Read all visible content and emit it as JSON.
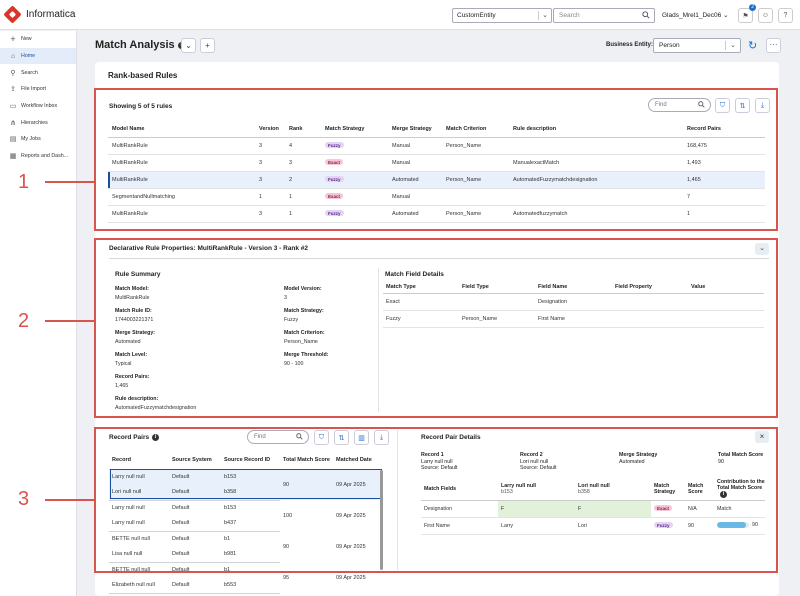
{
  "app": {
    "name": "Informatica"
  },
  "topbar": {
    "entity": "CustomEntity",
    "search_placeholder": "Search",
    "user": "Glads_Mrel1_Dec06",
    "notifications": "2"
  },
  "sidebar": {
    "items": [
      {
        "label": "New",
        "icon": "plus-icon"
      },
      {
        "label": "Home",
        "icon": "home-icon"
      },
      {
        "label": "Search",
        "icon": "search-icon"
      },
      {
        "label": "File Import",
        "icon": "file-import-icon"
      },
      {
        "label": "Workflow Inbox",
        "icon": "inbox-icon"
      },
      {
        "label": "Hierarchies",
        "icon": "hierarchy-icon"
      },
      {
        "label": "My Jobs",
        "icon": "jobs-icon"
      },
      {
        "label": "Reports and Dash...",
        "icon": "reports-icon"
      }
    ]
  },
  "header": {
    "title": "Match Analysis",
    "business_entity_label": "Business Entity:",
    "business_entity": "Person"
  },
  "section_title": "Rank-based Rules",
  "rules": {
    "showing": "Showing 5 of 5 rules",
    "find_placeholder": "Find",
    "columns": [
      "Model Name",
      "Version",
      "Rank",
      "Match Strategy",
      "Merge Strategy",
      "Match Criterion",
      "Rule description",
      "Record Pairs"
    ],
    "rows": [
      {
        "model": "MultiRankRule",
        "version": "3",
        "rank": "4",
        "strategy": "Fuzzy",
        "merge": "Manual",
        "criterion": "Person_Name",
        "description": "",
        "pairs": "168,475"
      },
      {
        "model": "MultiRankRule",
        "version": "3",
        "rank": "3",
        "strategy": "Exact",
        "merge": "Manual",
        "criterion": "",
        "description": "ManualexactMatch",
        "pairs": "1,493"
      },
      {
        "model": "MultiRankRule",
        "version": "3",
        "rank": "2",
        "strategy": "Fuzzy",
        "merge": "Automated",
        "criterion": "Person_Name",
        "description": "AutomatedFuzzymatchdesignation",
        "pairs": "1,465"
      },
      {
        "model": "SegmentandNullmatching",
        "version": "1",
        "rank": "1",
        "strategy": "Exact",
        "merge": "Manual",
        "criterion": "",
        "description": "",
        "pairs": "7"
      },
      {
        "model": "MultiRankRule",
        "version": "3",
        "rank": "1",
        "strategy": "Fuzzy",
        "merge": "Automated",
        "criterion": "Person_Name",
        "description": "Automatedfuzzymatch",
        "pairs": "1"
      }
    ]
  },
  "declarative": {
    "title": "Declarative Rule Properties: MultiRankRule - Version 3 - Rank #2",
    "summary_title": "Rule Summary",
    "left": [
      {
        "k": "Match Model:",
        "v": "MultiRankRule"
      },
      {
        "k": "Match Rule ID:",
        "v": "1744003221371"
      },
      {
        "k": "Merge Strategy:",
        "v": "Automated"
      },
      {
        "k": "Match Level:",
        "v": "Typical"
      },
      {
        "k": "Record Pairs:",
        "v": "1,465"
      },
      {
        "k": "Rule description:",
        "v": "AutomatedFuzzymatchdesignation"
      }
    ],
    "right": [
      {
        "k": "Model Version:",
        "v": "3"
      },
      {
        "k": "Match Strategy:",
        "v": "Fuzzy"
      },
      {
        "k": "Match Criterion:",
        "v": "Person_Name"
      },
      {
        "k": "Merge Threshold:",
        "v": "90 - 100"
      }
    ],
    "field_title": "Match Field Details",
    "field_columns": [
      "Match Type",
      "Field Type",
      "Field Name",
      "Field Property",
      "Value"
    ],
    "field_rows": [
      {
        "type": "Exact",
        "field_type": "",
        "name": "Designation",
        "property": "",
        "value": ""
      },
      {
        "type": "Fuzzy",
        "field_type": "Person_Name",
        "name": "First Name",
        "property": "",
        "value": ""
      }
    ]
  },
  "record_pairs": {
    "title": "Record Pairs",
    "find_placeholder": "Find",
    "columns": [
      "Record",
      "Source System",
      "Source Record ID",
      "Total Match Score",
      "Matched Date"
    ],
    "pairs": [
      {
        "r1": "Larry null null",
        "s1": "Default",
        "id1": "b153",
        "r2": "Lori null null",
        "s2": "Default",
        "id2": "b358",
        "score": "90",
        "date": "09 Apr 2025"
      },
      {
        "r1": "Larry null null",
        "s1": "Default",
        "id1": "b153",
        "r2": "Larry null null",
        "s2": "Default",
        "id2": "b437",
        "score": "100",
        "date": "09 Apr 2025"
      },
      {
        "r1": "BETTE null null",
        "s1": "Default",
        "id1": "b1",
        "r2": "Lisa null null",
        "s2": "Default",
        "id2": "b981",
        "score": "90",
        "date": "09 Apr 2025"
      },
      {
        "r1": "BETTE null null",
        "s1": "Default",
        "id1": "b1",
        "r2": "Elizabeth null null",
        "s2": "Default",
        "id2": "b553",
        "score": "95",
        "date": "09 Apr 2025"
      }
    ]
  },
  "pair_details": {
    "title": "Record Pair Details",
    "record1_label": "Record 1",
    "record1_name": "Larry null null",
    "record1_source": "Source: Default",
    "record2_label": "Record 2",
    "record2_name": "Lori null null",
    "record2_source": "Source: Default",
    "merge_label": "Merge Strategy",
    "merge_value": "Automated",
    "total_label": "Total Match Score",
    "total_value": "90",
    "col_fields": "Match Fields",
    "col_r1": "Larry null null",
    "col_r1_id": "b153",
    "col_r2": "Lori null null",
    "col_r2_id": "b358",
    "col_strategy": "Match Strategy",
    "col_score": "Match Score",
    "col_contrib": "Contribution to the Total Match Score",
    "rows": [
      {
        "field": "Designation",
        "v1": "F",
        "v2": "F",
        "strategy": "Exact",
        "score": "N/A",
        "contrib": "Match",
        "bar": null
      },
      {
        "field": "First Name",
        "v1": "Larry",
        "v2": "Lori",
        "strategy": "Fuzzy",
        "score": "90",
        "contrib": "90",
        "bar": 0.9
      }
    ]
  },
  "callouts": [
    "1",
    "2",
    "3"
  ],
  "colors": {
    "accent": "#1a6fd1",
    "callout": "#d9534f",
    "fuzzy": "#e4d3f4",
    "exact": "#f3c6d8"
  }
}
